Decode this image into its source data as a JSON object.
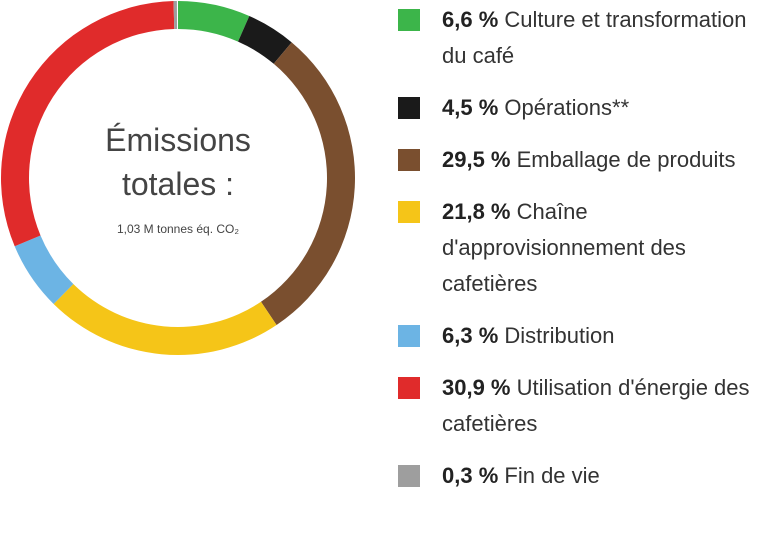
{
  "chart_data": {
    "type": "donut",
    "title": "Émissions totales :",
    "subtitle": "1,03 M tonnes éq. CO₂",
    "categories": [
      "Culture et transformation du café",
      "Opérations**",
      "Emballage de produits",
      "Chaîne d'approvisionnement des cafetières",
      "Distribution",
      "Utilisation d'énergie des cafetières",
      "Fin de vie"
    ],
    "values": [
      6.6,
      4.5,
      29.5,
      21.8,
      6.3,
      30.9,
      0.3
    ],
    "value_labels": [
      "6,6 %",
      "4,5 %",
      "29,5 %",
      "21,8 %",
      "6,3 %",
      "30,9 %",
      "0,3 %"
    ],
    "colors": [
      "#3cb54a",
      "#1a1a1a",
      "#7a4f2f",
      "#f5c518",
      "#6cb4e4",
      "#e02b2b",
      "#9e9e9e"
    ]
  }
}
